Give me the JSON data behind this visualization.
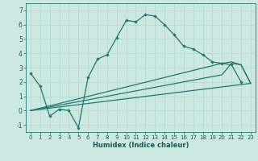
{
  "xlabel": "Humidex (Indice chaleur)",
  "background_color": "#cce8e0",
  "grid_color": "#b0d8cc",
  "line_color": "#1a7a6e",
  "xlim": [
    -0.5,
    23.5
  ],
  "ylim": [
    -1.5,
    7.5
  ],
  "yticks": [
    -1,
    0,
    1,
    2,
    3,
    4,
    5,
    6,
    7
  ],
  "xticks": [
    0,
    1,
    2,
    3,
    4,
    5,
    6,
    7,
    8,
    9,
    10,
    11,
    12,
    13,
    14,
    15,
    16,
    17,
    18,
    19,
    20,
    21,
    22,
    23
  ],
  "line1_x": [
    0,
    1,
    2,
    3,
    4,
    5,
    6,
    7,
    8,
    9,
    10,
    11,
    12,
    13,
    14,
    15,
    16,
    17,
    18,
    19,
    20,
    21,
    22
  ],
  "line1_y": [
    2.6,
    1.7,
    -0.4,
    0.1,
    0.0,
    -1.2,
    2.3,
    3.6,
    3.9,
    5.1,
    6.3,
    6.2,
    6.7,
    6.6,
    6.0,
    5.3,
    4.5,
    4.3,
    3.9,
    3.4,
    3.3,
    3.2,
    2.0
  ],
  "line2_x": [
    0,
    23
  ],
  "line2_y": [
    0.0,
    1.9
  ],
  "line3_x": [
    0,
    20,
    21,
    22,
    23
  ],
  "line3_y": [
    0.0,
    2.5,
    3.3,
    3.2,
    1.9
  ],
  "line4_x": [
    0,
    20,
    21,
    22,
    23
  ],
  "line4_y": [
    0.0,
    3.3,
    3.4,
    3.2,
    1.9
  ]
}
